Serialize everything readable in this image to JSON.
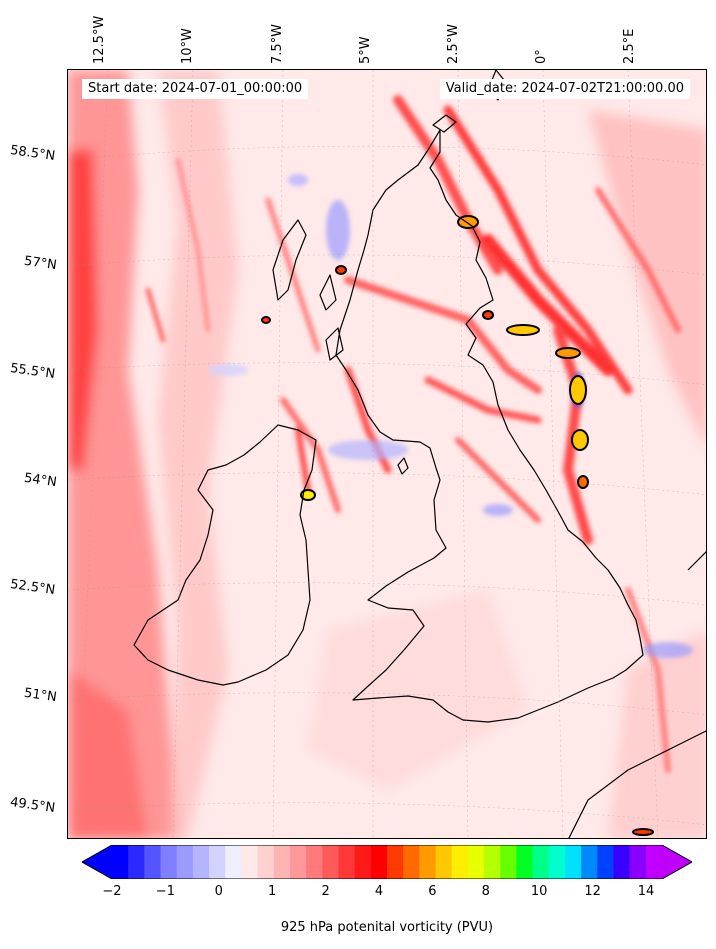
{
  "header": {
    "start_date": "Start date: 2024-07-01_00:00:00",
    "valid_date": "Valid_date: 2024-07-02T21:00:00.00"
  },
  "lon_labels": [
    "12.5°W",
    "10°W",
    "7.5°W",
    "5°W",
    "2.5°W",
    "0°",
    "2.5°E"
  ],
  "lat_labels": [
    "58.5°N",
    "57°N",
    "55.5°N",
    "54°N",
    "52.5°N",
    "51°N",
    "49.5°N"
  ],
  "colorbar": {
    "label": "925 hPa potenital vorticity (PVU)",
    "ticks": [
      "−2",
      "−1",
      "0",
      "1",
      "2",
      "4",
      "6",
      "8",
      "10",
      "12",
      "14"
    ],
    "colors": [
      "#0000ff",
      "#2a2aff",
      "#5555ff",
      "#7f7fff",
      "#9b9bff",
      "#b4b4ff",
      "#d2d2ff",
      "#eeeeff",
      "#ffe8e8",
      "#ffd0d0",
      "#ffb4b4",
      "#ff9898",
      "#ff7a7a",
      "#ff5a5a",
      "#ff3838",
      "#ff1a1a",
      "#ff0000",
      "#ff3a00",
      "#ff6a00",
      "#ff9a00",
      "#ffc800",
      "#ffee00",
      "#e8ff00",
      "#b4ff00",
      "#66ff00",
      "#00ff22",
      "#00ff88",
      "#00ffcc",
      "#00e0ff",
      "#0088ff",
      "#0040ff",
      "#3a00ff",
      "#8a00ff",
      "#c000ff"
    ],
    "extend": "both"
  },
  "map": {
    "background_color": "#ffe6e6",
    "land_outline_color": "#000000",
    "extent": "British Isles, 13°W–3.5°E, 49°N–59.5°N"
  }
}
